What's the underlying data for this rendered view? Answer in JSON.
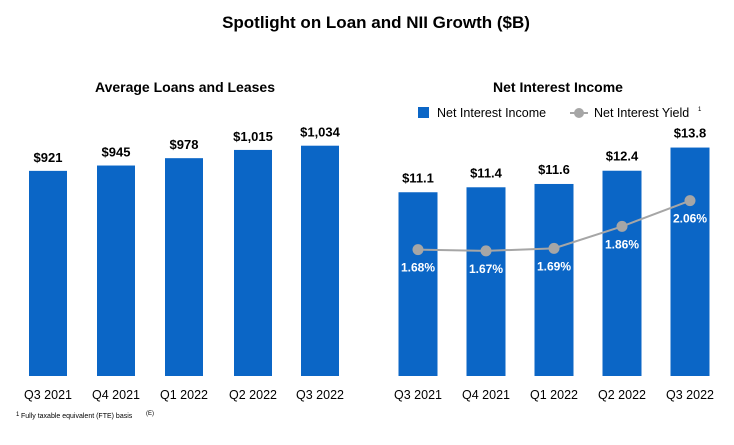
{
  "title": "Spotlight on Loan and NII Growth ($B)",
  "footnote": "Fully taxable equivalent (FTE) basis",
  "footnote_marker": "1",
  "footnote_ref": "(E)",
  "colors": {
    "bar": "#0b66c6",
    "line": "#a6a6a6",
    "pct_text": "#ffffff"
  },
  "chart_data": [
    {
      "type": "bar",
      "title": "Average Loans and Leases",
      "categories": [
        "Q3 2021",
        "Q4 2021",
        "Q1 2022",
        "Q2 2022",
        "Q3 2022"
      ],
      "values": [
        921,
        945,
        978,
        1015,
        1034
      ],
      "labels": [
        "$921",
        "$945",
        "$978",
        "$1,015",
        "$1,034"
      ],
      "ylim": [
        0,
        1100
      ],
      "grid": false,
      "legend": false
    },
    {
      "type": "bar",
      "title": "Net Interest Income",
      "categories": [
        "Q3 2021",
        "Q4 2021",
        "Q1 2022",
        "Q2 2022",
        "Q3 2022"
      ],
      "series": [
        {
          "name": "Net Interest Income",
          "type": "bar",
          "values": [
            11.1,
            11.4,
            11.6,
            12.4,
            13.8
          ],
          "labels": [
            "$11.1",
            "$11.4",
            "$11.6",
            "$12.4",
            "$13.8"
          ]
        },
        {
          "name": "Net Interest Yield",
          "name_superscript": "1",
          "type": "line",
          "values": [
            1.68,
            1.67,
            1.69,
            1.86,
            2.06
          ],
          "labels": [
            "1.68%",
            "1.67%",
            "1.69%",
            "1.86%",
            "2.06%"
          ]
        }
      ],
      "ylim": [
        0,
        14.8
      ],
      "line_ylim": [
        0.7,
        2.6
      ],
      "grid": false,
      "legend": "top"
    }
  ]
}
